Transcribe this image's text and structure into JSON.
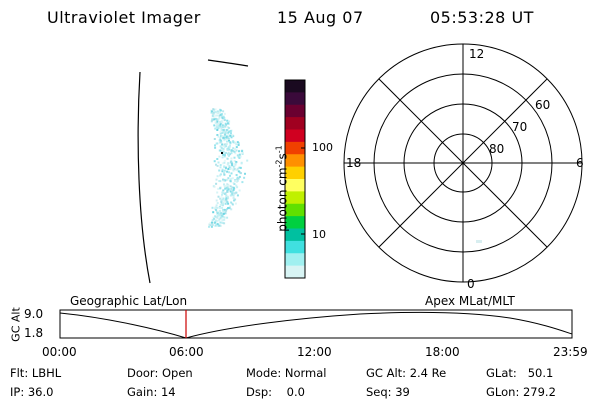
{
  "header": {
    "title": "Ultraviolet Imager",
    "date": "15 Aug 07",
    "time": "05:53:28 UT"
  },
  "colorbar": {
    "label": "photon cm",
    "label_sup1": "-2",
    "label_mid": "s",
    "label_sup2": "-1",
    "ticks": [
      "100",
      "10"
    ],
    "colors": [
      "#1a0a20",
      "#3a0a3a",
      "#6a0030",
      "#a00020",
      "#d00020",
      "#f04000",
      "#ff9000",
      "#ffd000",
      "#ffff60",
      "#c0f000",
      "#60e000",
      "#00d040",
      "#00c0a0",
      "#40e0e0",
      "#a0f0f0",
      "#d8f4f4"
    ]
  },
  "polar": {
    "lat_labels": [
      "60",
      "70",
      "80"
    ],
    "mlt_labels": {
      "top": "12",
      "bottom": "0",
      "left": "18",
      "right": "6"
    }
  },
  "timeline": {
    "left_label": "Geographic Lat/Lon",
    "right_label": "Apex MLat/MLT",
    "y_axis_label": "GC Alt",
    "y_ticks": [
      "9.0",
      "1.8"
    ],
    "x_ticks": [
      "00:00",
      "06:00",
      "12:00",
      "18:00",
      "23:59"
    ],
    "marker_time": "05:53:28",
    "marker_color": "#cc0000"
  },
  "status": {
    "flt": {
      "label": "Flt:",
      "value": "LBHL"
    },
    "ip": {
      "label": "IP:",
      "value": "36.0"
    },
    "door": {
      "label": "Door:",
      "value": "Open"
    },
    "gain": {
      "label": "Gain:",
      "value": "14"
    },
    "mode": {
      "label": "Mode:",
      "value": "Normal"
    },
    "dsp": {
      "label": "Dsp:",
      "value": "0.0"
    },
    "gcalt": {
      "label": "GC Alt:",
      "value": "2.4 Re"
    },
    "seq": {
      "label": "Seq:",
      "value": "39"
    },
    "glat": {
      "label": "GLat:",
      "value": "50.1"
    },
    "glon": {
      "label": "GLon:",
      "value": "279.2"
    }
  }
}
